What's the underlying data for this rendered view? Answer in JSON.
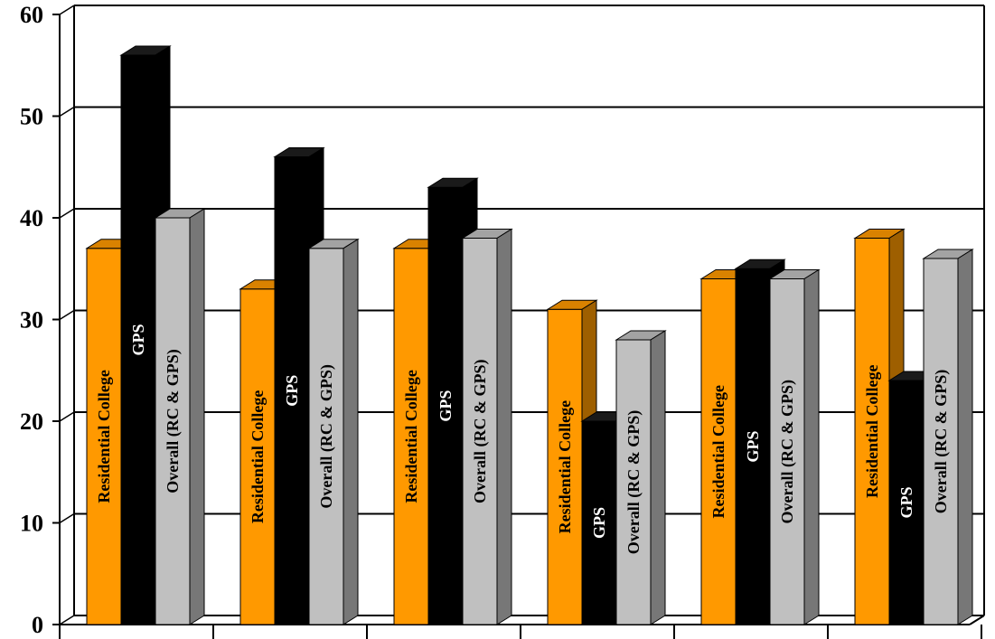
{
  "chart_data": {
    "type": "bar",
    "title": "",
    "xlabel": "",
    "ylabel": "",
    "ylim": [
      0,
      60
    ],
    "yticks": [
      0,
      10,
      20,
      30,
      40,
      50,
      60
    ],
    "grid": true,
    "legend": "none",
    "categories": [
      "",
      "",
      "",
      "",
      "",
      ""
    ],
    "series": [
      {
        "name": "Residential College",
        "color": "#FF9900",
        "label_color": "#000000",
        "values": [
          37,
          33,
          37,
          31,
          34,
          38
        ]
      },
      {
        "name": "GPS",
        "color": "#000000",
        "label_color": "#FFFFFF",
        "values": [
          56,
          46,
          43,
          20,
          35,
          24
        ]
      },
      {
        "name": "Overall (RC & GPS)",
        "color": "#C0C0C0",
        "label_color": "#000000",
        "values": [
          40,
          37,
          38,
          28,
          34,
          36
        ]
      }
    ]
  }
}
